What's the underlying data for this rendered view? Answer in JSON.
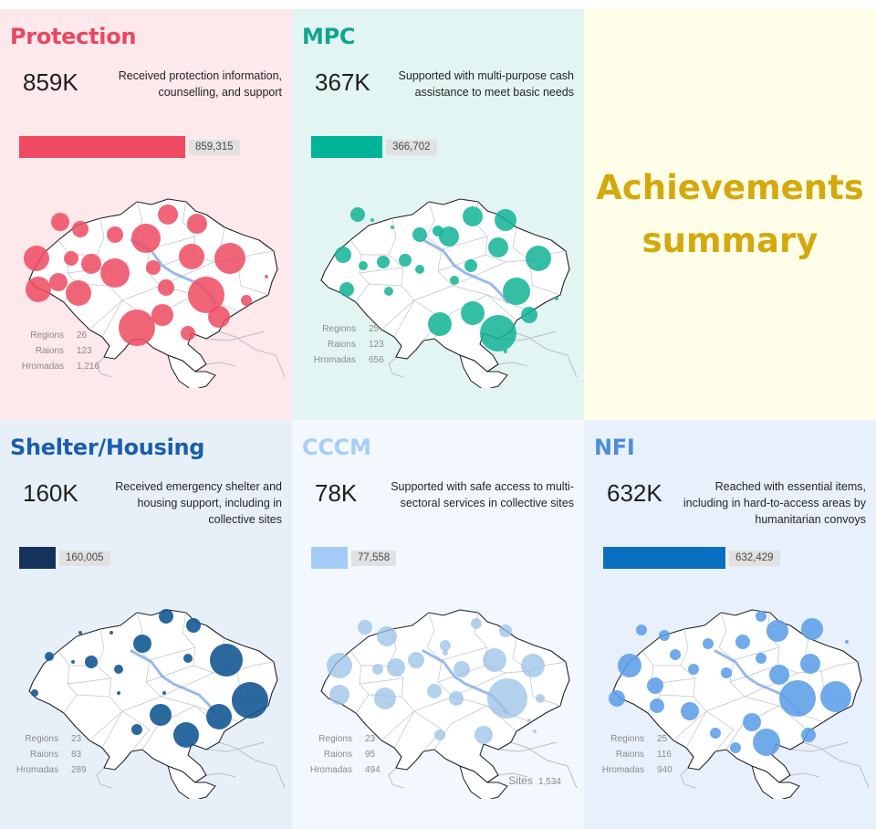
{
  "summary": {
    "line1": "Achievements",
    "line2": "summary",
    "color": "#d4a90d",
    "background": "#fffee9"
  },
  "labels": {
    "regions": "Regions",
    "raions": "Raions",
    "hromadas": "Hromadas",
    "sites": "Sites"
  },
  "panels": [
    {
      "title": "Protection",
      "title_color": "#e8485f",
      "background": "#fde8ec",
      "big_number": "859K",
      "description": "Received protection information, counselling, and support",
      "bar_value": 859315,
      "bar_label": "859,315",
      "bar_color": "#ef4a61",
      "bubble_color": "#ef4a61",
      "bubble_opacity": 0.85,
      "regions": "26",
      "raions": "123",
      "hromadas": "1,216"
    },
    {
      "title": "MPC",
      "title_color": "#12a58c",
      "background": "#e2f5f2",
      "big_number": "367K",
      "description": "Supported with multi-purpose cash assistance to meet basic needs",
      "bar_value": 366702,
      "bar_label": "366,702",
      "bar_color": "#01b498",
      "bubble_color": "#12b396",
      "bubble_opacity": 0.85,
      "regions": "25",
      "raions": "123",
      "hromadas": "656"
    },
    {
      "title": "Shelter/Housing",
      "title_color": "#1b5db0",
      "background": "#e7f0f9",
      "big_number": "160K",
      "description": "Received emergency shelter and housing support, including in collective sites",
      "bar_value": 160005,
      "bar_label": "160,005",
      "bar_color": "#16335e",
      "bubble_color": "#135893",
      "bubble_opacity": 0.9,
      "regions": "23",
      "raions": "83",
      "hromadas": "289"
    },
    {
      "title": "CCCM",
      "title_color": "#a8cdf6",
      "background": "#f3f8fe",
      "big_number": "78K",
      "description": "Supported with safe access to multi-sectoral services in collective sites",
      "bar_value": 77558,
      "bar_label": "77,558",
      "bar_color": "#a3cdf8",
      "bubble_color": "#99c2e6",
      "bubble_opacity": 0.75,
      "regions": "23",
      "raions": "95",
      "hromadas": "494",
      "sites": "1,534"
    },
    {
      "title": "NFI",
      "title_color": "#4e8fd4",
      "background": "#e8f1fb",
      "big_number": "632K",
      "description": "Reached with essential items, including in hard-to-access areas by humanitarian convoys",
      "bar_value": 632429,
      "bar_label": "632,429",
      "bar_color": "#0a6fc0",
      "bubble_color": "#5c9ee8",
      "bubble_opacity": 0.88,
      "regions": "25",
      "raions": "116",
      "hromadas": "940"
    }
  ]
}
